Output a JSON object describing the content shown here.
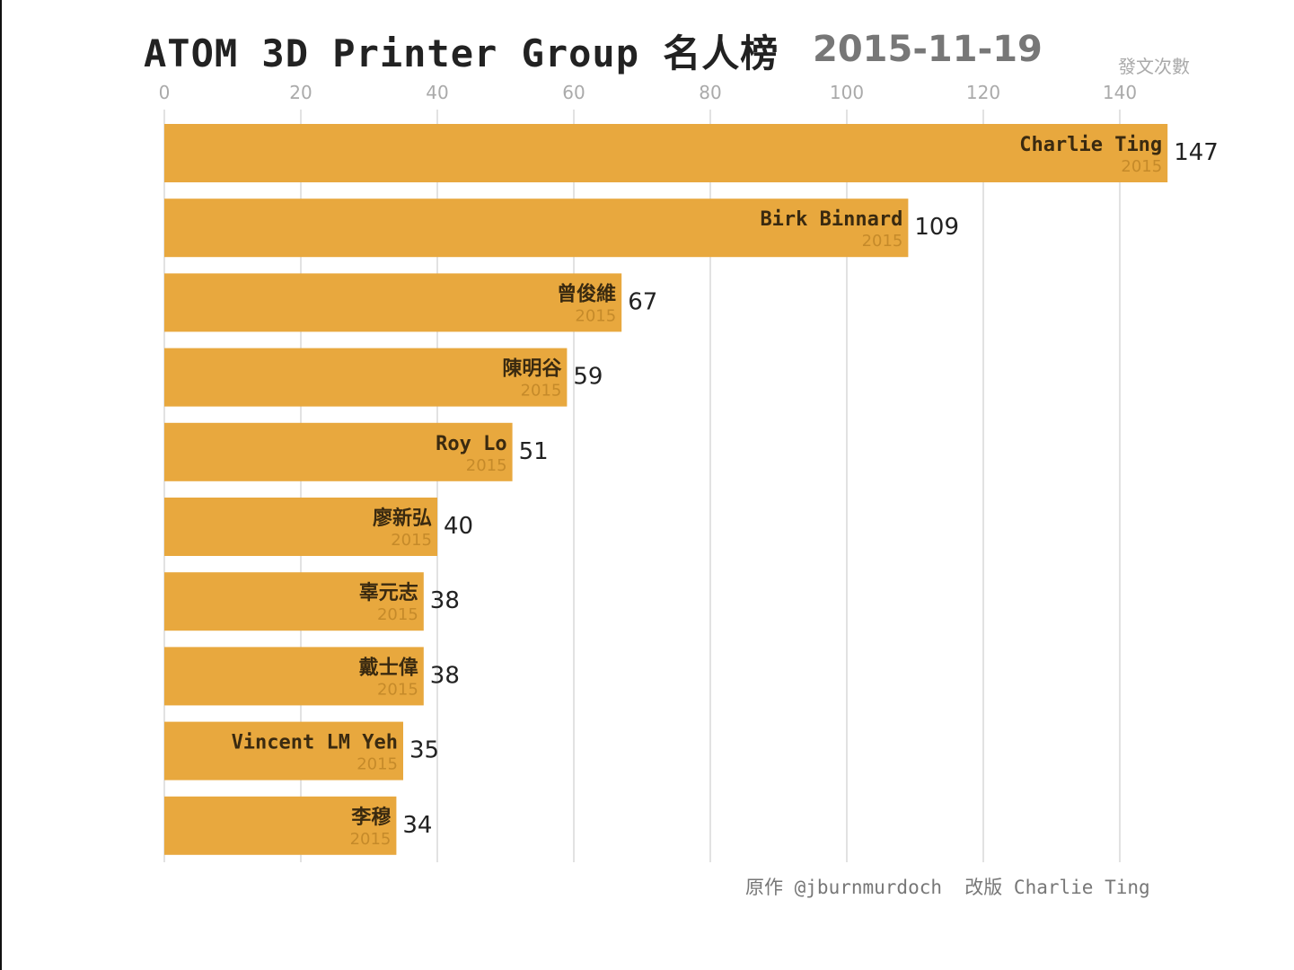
{
  "chart_data": {
    "type": "bar",
    "orientation": "horizontal",
    "title": "ATOM 3D Printer Group 名人榜",
    "date_label": "2015-11-19",
    "xlabel": "發文次數",
    "xlim": [
      0,
      147
    ],
    "x_ticks": [
      0,
      20,
      40,
      60,
      80,
      100,
      120,
      140
    ],
    "grid": true,
    "bar_color": "#E8A83E",
    "categories": [
      "Charlie Ting",
      "Birk Binnard",
      "曾俊維",
      "陳明谷",
      "Roy Lo",
      "廖新弘",
      "辜元志",
      "戴士偉",
      "Vincent LM Yeh",
      "李穆"
    ],
    "sublabels": [
      "2015",
      "2015",
      "2015",
      "2015",
      "2015",
      "2015",
      "2015",
      "2015",
      "2015",
      "2015"
    ],
    "values": [
      147,
      109,
      67,
      59,
      51,
      40,
      38,
      38,
      35,
      34
    ]
  },
  "credit": "原作 @jburnmurdoch  改版 Charlie Ting"
}
